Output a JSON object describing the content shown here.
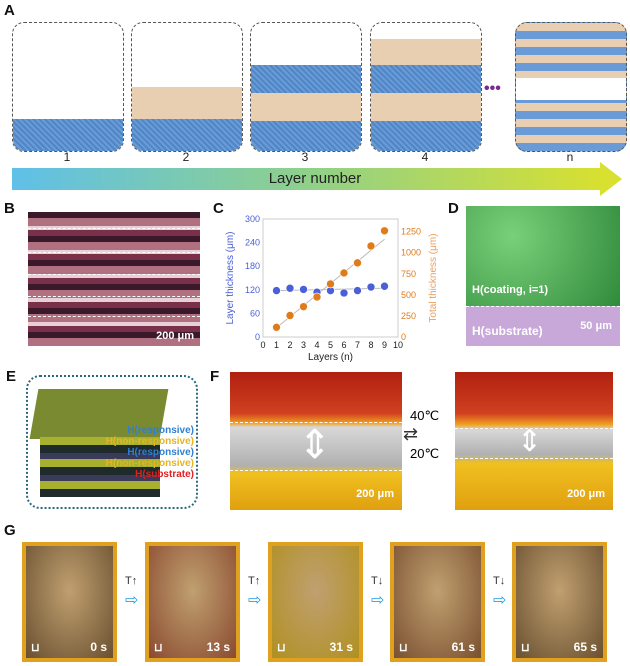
{
  "panels": {
    "a": "A",
    "b": "B",
    "c": "C",
    "d": "D",
    "e": "E",
    "f": "F",
    "g": "G"
  },
  "panel_a": {
    "steps": [
      "1",
      "2",
      "3",
      "4",
      "n"
    ],
    "axis_label": "Layer number",
    "ellipsis": "•••"
  },
  "panel_b": {
    "scale": "200 μm"
  },
  "panel_d": {
    "label_coating": "H(coating, i=1)",
    "label_substrate": "H(substrate)",
    "scale": "50 μm"
  },
  "panel_e": {
    "labels": [
      {
        "text": "H(responsive)",
        "color": "#2f7fd1"
      },
      {
        "text": "H(non-responsive)",
        "color": "#e6b422"
      },
      {
        "text": "H(responsive)",
        "color": "#2f7fd1"
      },
      {
        "text": "H(non-responsive)",
        "color": "#e6b422"
      },
      {
        "text": "H(substrate)",
        "color": "#e02020"
      }
    ]
  },
  "panel_f": {
    "temp_up": "40℃",
    "temp_down": "20℃",
    "scale_left": "200 μm",
    "scale_right": "200 μm"
  },
  "panel_g": {
    "frames": [
      {
        "time": "0 s"
      },
      {
        "time": "13 s"
      },
      {
        "time": "31 s"
      },
      {
        "time": "61 s"
      },
      {
        "time": "65 s"
      }
    ],
    "arrows": [
      "T↑",
      "T↑",
      "T↓",
      "T↓"
    ]
  },
  "chart_data": {
    "type": "scatter",
    "x": [
      1,
      2,
      3,
      4,
      5,
      6,
      7,
      8,
      9
    ],
    "series": [
      {
        "name": "Layer thickness (μm)",
        "axis": "left",
        "color": "#4a5fd8",
        "values": [
          118,
          124,
          121,
          114,
          118,
          112,
          118,
          127,
          129
        ]
      },
      {
        "name": "Total thickness (μm)",
        "axis": "right",
        "color": "#e07b1a",
        "values": [
          115,
          255,
          360,
          475,
          630,
          760,
          880,
          1080,
          1260
        ]
      }
    ],
    "xlabel": "Layers (n)",
    "ylabel": "Layer thickness (μm)",
    "y2label": "Total thickness (μm)",
    "xlim": [
      0,
      10
    ],
    "ylim": [
      0,
      300
    ],
    "y2lim": [
      0,
      1400
    ],
    "xticks": [
      "0",
      "1",
      "2",
      "3",
      "4",
      "5",
      "6",
      "7",
      "8",
      "9",
      "10"
    ],
    "yticks": [
      "0",
      "60",
      "120",
      "180",
      "240",
      "300"
    ],
    "y2ticks": [
      "0",
      "250",
      "500",
      "750",
      "1000",
      "1250"
    ],
    "grid": false
  }
}
